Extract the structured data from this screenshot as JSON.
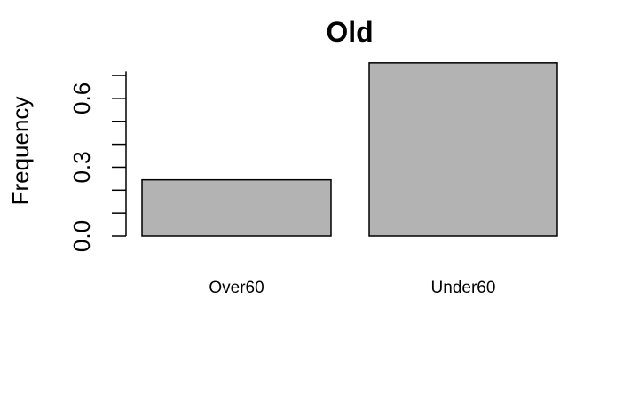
{
  "chart_data": {
    "type": "bar",
    "title": "Old",
    "xlabel": "",
    "ylabel": "Frequency",
    "categories": [
      "Over60",
      "Under60"
    ],
    "values": [
      0.245,
      0.755
    ],
    "ylim": [
      0,
      0.72
    ],
    "yticks_labeled": [
      "0.0",
      "0.3",
      "0.6"
    ],
    "yticks_minor_step": 0.1,
    "grid": false,
    "legend": "none",
    "colors": {
      "bar_fill": "#b3b3b3",
      "bar_stroke": "#000000",
      "axis": "#000000"
    }
  }
}
